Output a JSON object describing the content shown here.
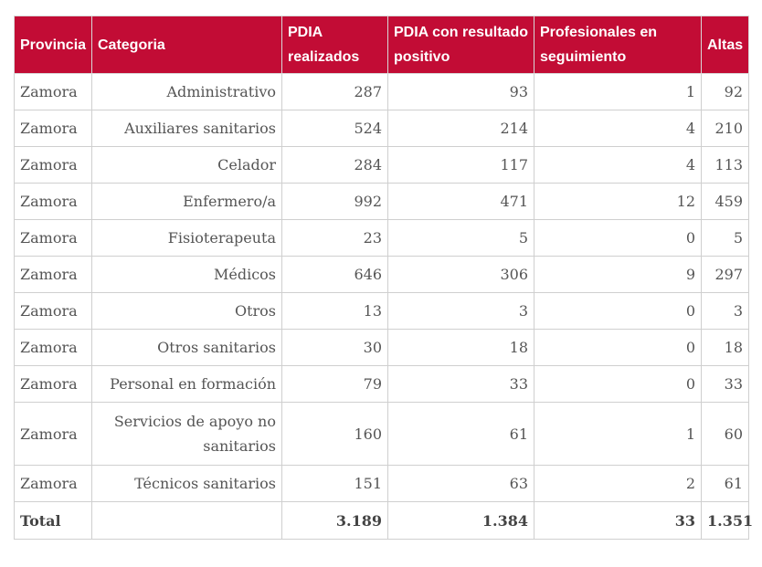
{
  "table": {
    "headers": [
      "Provincia",
      "Categoria",
      "PDIA realizados",
      "PDIA con resultado positivo",
      "Profesionales en seguimiento",
      "Altas"
    ],
    "rows": [
      [
        "Zamora",
        "Administrativo",
        "287",
        "93",
        "1",
        "92"
      ],
      [
        "Zamora",
        "Auxiliares sanitarios",
        "524",
        "214",
        "4",
        "210"
      ],
      [
        "Zamora",
        "Celador",
        "284",
        "117",
        "4",
        "113"
      ],
      [
        "Zamora",
        "Enfermero/a",
        "992",
        "471",
        "12",
        "459"
      ],
      [
        "Zamora",
        "Fisioterapeuta",
        "23",
        "5",
        "0",
        "5"
      ],
      [
        "Zamora",
        "Médicos",
        "646",
        "306",
        "9",
        "297"
      ],
      [
        "Zamora",
        "Otros",
        "13",
        "3",
        "0",
        "3"
      ],
      [
        "Zamora",
        "Otros sanitarios",
        "30",
        "18",
        "0",
        "18"
      ],
      [
        "Zamora",
        "Personal en formación",
        "79",
        "33",
        "0",
        "33"
      ],
      [
        "Zamora",
        "Servicios de apoyo no sanitarios",
        "160",
        "61",
        "1",
        "60"
      ],
      [
        "Zamora",
        "Técnicos sanitarios",
        "151",
        "63",
        "2",
        "61"
      ]
    ],
    "total": [
      "Total",
      "",
      "3.189",
      "1.384",
      "33",
      "1.351"
    ]
  },
  "colors": {
    "header_bg": "#c20c35",
    "header_text": "#ffffff",
    "border": "#cfcfcf"
  }
}
